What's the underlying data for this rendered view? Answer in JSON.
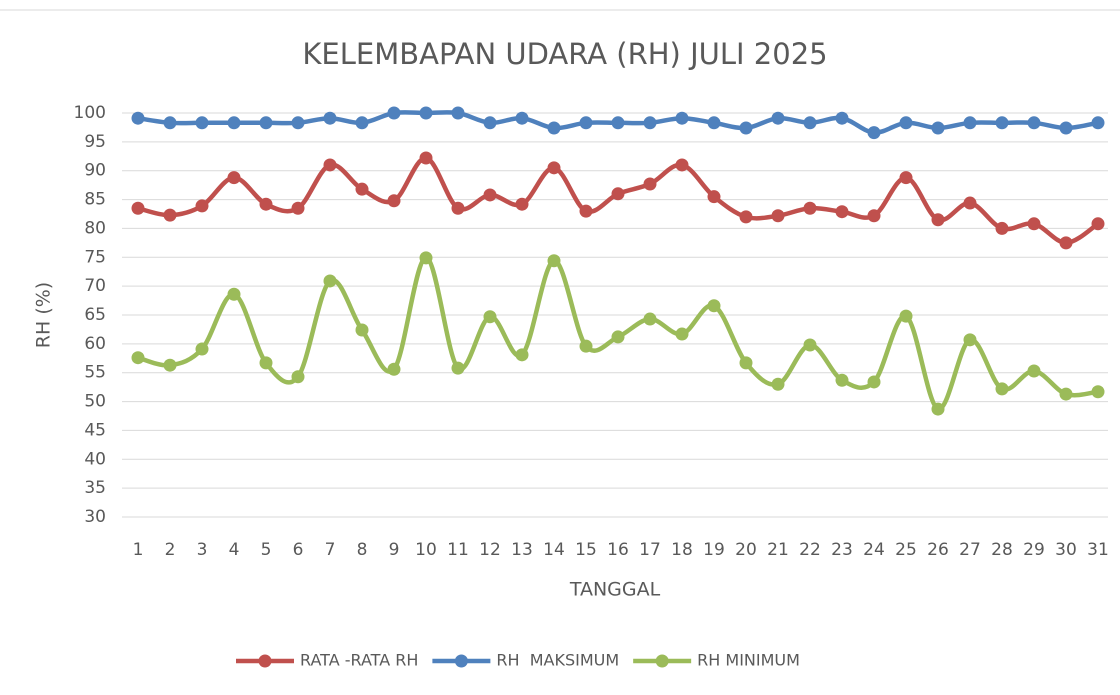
{
  "chart_data": {
    "type": "line",
    "title": "KELEMBAPAN UDARA (RH) JULI 2025",
    "x_label": "TANGGAL",
    "y_label": "RH (%)",
    "categories": [
      "1",
      "2",
      "3",
      "4",
      "5",
      "6",
      "7",
      "8",
      "9",
      "10",
      "11",
      "12",
      "13",
      "14",
      "15",
      "16",
      "17",
      "18",
      "19",
      "20",
      "21",
      "22",
      "23",
      "24",
      "25",
      "26",
      "27",
      "28",
      "29",
      "30",
      "31"
    ],
    "series": [
      {
        "name": "RATA -RATA RH",
        "color": "#c0504d",
        "values": [
          83.5,
          82.3,
          83.9,
          88.8,
          84.2,
          83.5,
          91,
          86.8,
          84.8,
          92.2,
          83.5,
          85.8,
          84.2,
          90.5,
          83,
          86,
          87.7,
          91,
          85.5,
          82,
          82.2,
          83.5,
          82.9,
          82.2,
          88.8,
          81.5,
          84.4,
          80,
          80.8,
          77.5,
          80.8
        ]
      },
      {
        "name": "RH  MAKSIMUM",
        "color": "#4f81bd",
        "values": [
          99.1,
          98.3,
          98.3,
          98.3,
          98.3,
          98.3,
          99.1,
          98.3,
          100,
          100,
          100,
          98.3,
          99.1,
          97.4,
          98.3,
          98.3,
          98.3,
          99.1,
          98.3,
          97.4,
          99.1,
          98.3,
          99.1,
          96.6,
          98.3,
          97.4,
          98.3,
          98.3,
          98.3,
          97.4,
          98.3
        ]
      },
      {
        "name": "RH MINIMUM",
        "color": "#9bbb59",
        "values": [
          57.6,
          56.3,
          59.1,
          68.6,
          56.7,
          54.3,
          70.9,
          62.4,
          55.6,
          74.9,
          55.8,
          64.7,
          58.1,
          74.4,
          59.6,
          61.2,
          64.3,
          61.7,
          66.6,
          56.7,
          53,
          59.8,
          53.7,
          53.4,
          64.8,
          48.7,
          60.7,
          52.2,
          55.3,
          51.3,
          51.7
        ]
      }
    ],
    "ylim": [
      30,
      100
    ],
    "yticks": [
      30,
      35,
      40,
      45,
      50,
      55,
      60,
      65,
      70,
      75,
      80,
      85,
      90,
      95,
      100
    ],
    "grid": true,
    "smooth": true,
    "legend": "bottom"
  }
}
